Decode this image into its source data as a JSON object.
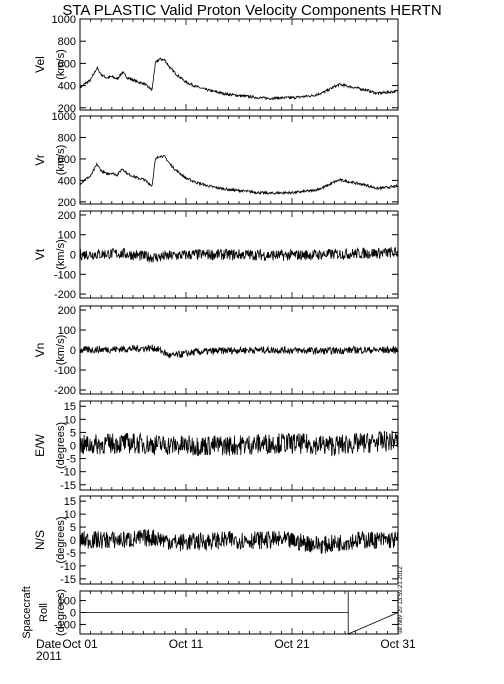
{
  "title": "STA PLASTIC Valid Proton Velocity Components HERTN",
  "stamp": "ue Nov 20 13:59:21 2012",
  "date_label": "Date",
  "year_label": "2011",
  "chart_data": {
    "type": "line",
    "x_axis": {
      "unit": "day of October 2011",
      "range": [
        1,
        31
      ],
      "ticks": [
        {
          "day": 1,
          "label": "Oct 01"
        },
        {
          "day": 11,
          "label": "Oct 11"
        },
        {
          "day": 21,
          "label": "Oct 21"
        },
        {
          "day": 31,
          "label": "Oct 31"
        }
      ]
    },
    "panels": [
      {
        "id": "vel",
        "label": "Vel",
        "unit": "(km/s)",
        "ylim": [
          180,
          1000
        ],
        "yticks": [
          200,
          400,
          600,
          800,
          1000
        ],
        "noise": 12,
        "x": [
          1,
          1.5,
          2.0,
          2.6,
          3.0,
          3.5,
          4.0,
          4.5,
          5.0,
          5.5,
          6.0,
          6.5,
          7.0,
          7.8,
          8.1,
          8.5,
          9.0,
          9.5,
          10.0,
          10.5,
          11.0,
          12.0,
          13.0,
          14.0,
          15.0,
          16.0,
          17.0,
          18.0,
          19.0,
          20.0,
          21.0,
          22.0,
          23.0,
          24.0,
          25.0,
          25.5,
          26.0,
          27.0,
          28.0,
          29.0,
          30.0,
          31.0
        ],
        "y": [
          380,
          420,
          450,
          560,
          500,
          470,
          480,
          460,
          520,
          470,
          450,
          430,
          420,
          360,
          600,
          640,
          630,
          560,
          510,
          470,
          430,
          390,
          360,
          340,
          320,
          310,
          300,
          290,
          285,
          290,
          290,
          300,
          310,
          340,
          390,
          410,
          400,
          380,
          360,
          330,
          340,
          350
        ]
      },
      {
        "id": "vr",
        "label": "Vr",
        "unit": "(km/s)",
        "ylim": [
          180,
          1000
        ],
        "yticks": [
          200,
          400,
          600,
          800,
          1000
        ],
        "noise": 12,
        "x": [
          1,
          1.5,
          2.0,
          2.6,
          3.0,
          3.5,
          4.0,
          4.5,
          5.0,
          5.5,
          6.0,
          6.5,
          7.0,
          7.8,
          8.1,
          8.5,
          9.0,
          9.5,
          10.0,
          10.5,
          11.0,
          12.0,
          13.0,
          14.0,
          15.0,
          16.0,
          17.0,
          18.0,
          19.0,
          20.0,
          21.0,
          22.0,
          23.0,
          24.0,
          25.0,
          25.5,
          26.0,
          27.0,
          28.0,
          29.0,
          30.0,
          31.0
        ],
        "y": [
          370,
          410,
          440,
          550,
          490,
          460,
          470,
          450,
          510,
          460,
          440,
          420,
          410,
          350,
          590,
          630,
          620,
          550,
          500,
          460,
          420,
          380,
          350,
          330,
          315,
          305,
          295,
          285,
          280,
          285,
          285,
          295,
          305,
          335,
          385,
          405,
          395,
          375,
          355,
          325,
          335,
          345
        ]
      },
      {
        "id": "vt",
        "label": "Vt",
        "unit": "(km/s)",
        "ylim": [
          -220,
          220
        ],
        "yticks": [
          -200,
          -100,
          0,
          100,
          200
        ],
        "noise": 28,
        "x": [
          1,
          5,
          8,
          10,
          12,
          16,
          20,
          24,
          27,
          31
        ],
        "y": [
          0,
          5,
          -15,
          -5,
          0,
          0,
          -5,
          0,
          5,
          10
        ]
      },
      {
        "id": "vn",
        "label": "Vn",
        "unit": "(km/s)",
        "ylim": [
          -220,
          220
        ],
        "yticks": [
          -200,
          -100,
          0,
          100,
          200
        ],
        "noise": 18,
        "x": [
          1,
          5,
          8,
          8.5,
          9.5,
          12,
          16,
          20,
          24,
          27,
          31
        ],
        "y": [
          0,
          5,
          10,
          0,
          -30,
          -10,
          0,
          0,
          -5,
          0,
          0
        ]
      },
      {
        "id": "ew",
        "label": "E/W",
        "unit": "(degrees)",
        "ylim": [
          -17,
          17
        ],
        "yticks": [
          -15,
          -10,
          -5,
          0,
          5,
          10,
          15
        ],
        "noise": 4,
        "x": [
          1,
          5,
          10,
          15,
          20,
          25,
          31
        ],
        "y": [
          0,
          1,
          0,
          0,
          1,
          0,
          2
        ]
      },
      {
        "id": "ns",
        "label": "N/S",
        "unit": "(degrees)",
        "ylim": [
          -17,
          17
        ],
        "yticks": [
          -15,
          -10,
          -5,
          0,
          5,
          10,
          15
        ],
        "noise": 3.5,
        "x": [
          1,
          5,
          8,
          10,
          15,
          20,
          24,
          27,
          31
        ],
        "y": [
          0,
          0,
          1,
          -1,
          0,
          0,
          -2,
          0,
          0
        ]
      },
      {
        "id": "roll",
        "label": "Spacecraft",
        "label2": "Roll",
        "unit": "(degrees)",
        "ylim": [
          -180,
          180
        ],
        "yticks": [
          -100,
          0,
          100
        ],
        "noise": 0,
        "x": [
          1,
          26.3,
          26.3,
          26.3,
          31
        ],
        "y": [
          0,
          0,
          180,
          -180,
          0
        ]
      }
    ]
  }
}
